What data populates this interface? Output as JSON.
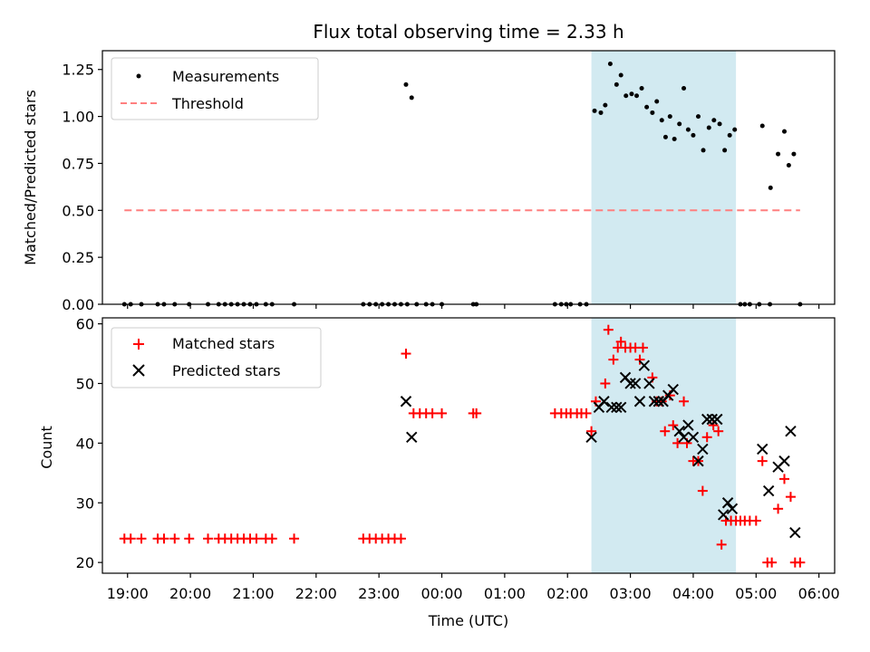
{
  "title": "Flux total observing time = 2.33 h",
  "colors": {
    "measurement": "#000000",
    "threshold": "#ff7f7f",
    "matched": "#ff0000",
    "predicted": "#000000",
    "span_fill": "#add8e6"
  },
  "chart_data": [
    {
      "type": "scatter",
      "ylabel": "Matched/Predicted stars",
      "xlabel": "",
      "xlim": [
        18.6,
        30.25
      ],
      "ylim": [
        0,
        1.35
      ],
      "yticks": [
        0.0,
        0.25,
        0.5,
        0.75,
        1.0,
        1.25
      ],
      "ytick_labels": [
        "0.00",
        "0.25",
        "0.50",
        "0.75",
        "1.00",
        "1.25"
      ],
      "highlight_span": [
        26.38,
        28.68
      ],
      "legend": {
        "placement": "upper-left",
        "entries": [
          {
            "label": "Measurements",
            "kind": "dot"
          },
          {
            "label": "Threshold",
            "kind": "dashed-line"
          }
        ]
      },
      "threshold": {
        "name": "Threshold",
        "y": 0.5,
        "x_range": [
          18.95,
          29.7
        ]
      },
      "series": [
        {
          "name": "Measurements",
          "points": [
            [
              18.95,
              0
            ],
            [
              19.05,
              0
            ],
            [
              19.22,
              0
            ],
            [
              19.48,
              0
            ],
            [
              19.58,
              0
            ],
            [
              19.75,
              0
            ],
            [
              19.98,
              0
            ],
            [
              20.28,
              0
            ],
            [
              20.45,
              0
            ],
            [
              20.55,
              0
            ],
            [
              20.65,
              0
            ],
            [
              20.75,
              0
            ],
            [
              20.85,
              0
            ],
            [
              20.95,
              0
            ],
            [
              21.05,
              0
            ],
            [
              21.2,
              0
            ],
            [
              21.3,
              0
            ],
            [
              21.65,
              0
            ],
            [
              22.75,
              0
            ],
            [
              22.85,
              0
            ],
            [
              22.95,
              0
            ],
            [
              23.05,
              0
            ],
            [
              23.15,
              0
            ],
            [
              23.25,
              0
            ],
            [
              23.35,
              0
            ],
            [
              23.45,
              0
            ],
            [
              23.6,
              0
            ],
            [
              23.75,
              0
            ],
            [
              23.85,
              0
            ],
            [
              24.0,
              0
            ],
            [
              24.5,
              0
            ],
            [
              24.55,
              0
            ],
            [
              25.8,
              0
            ],
            [
              25.9,
              0
            ],
            [
              25.98,
              0
            ],
            [
              26.05,
              0
            ],
            [
              26.2,
              0
            ],
            [
              26.3,
              0
            ],
            [
              23.43,
              1.17
            ],
            [
              23.52,
              1.1
            ],
            [
              26.43,
              1.03
            ],
            [
              26.53,
              1.02
            ],
            [
              26.6,
              1.06
            ],
            [
              26.68,
              1.28
            ],
            [
              26.78,
              1.17
            ],
            [
              26.85,
              1.22
            ],
            [
              26.93,
              1.11
            ],
            [
              27.02,
              1.12
            ],
            [
              27.1,
              1.11
            ],
            [
              27.18,
              1.15
            ],
            [
              27.26,
              1.05
            ],
            [
              27.35,
              1.02
            ],
            [
              27.42,
              1.08
            ],
            [
              27.5,
              0.98
            ],
            [
              27.56,
              0.89
            ],
            [
              27.63,
              1.0
            ],
            [
              27.7,
              0.88
            ],
            [
              27.78,
              0.96
            ],
            [
              27.85,
              1.15
            ],
            [
              27.92,
              0.93
            ],
            [
              28.0,
              0.9
            ],
            [
              28.08,
              1.0
            ],
            [
              28.16,
              0.82
            ],
            [
              28.25,
              0.94
            ],
            [
              28.33,
              0.98
            ],
            [
              28.42,
              0.96
            ],
            [
              28.5,
              0.82
            ],
            [
              28.58,
              0.9
            ],
            [
              28.66,
              0.93
            ],
            [
              28.75,
              0
            ],
            [
              28.82,
              0
            ],
            [
              28.9,
              0
            ],
            [
              29.05,
              0
            ],
            [
              29.22,
              0
            ],
            [
              29.7,
              0
            ],
            [
              29.1,
              0.95
            ],
            [
              29.23,
              0.62
            ],
            [
              29.35,
              0.8
            ],
            [
              29.45,
              0.92
            ],
            [
              29.52,
              0.74
            ],
            [
              29.6,
              0.8
            ]
          ]
        }
      ]
    },
    {
      "type": "scatter",
      "ylabel": "Count",
      "xlabel": "Time (UTC)",
      "xlim": [
        18.6,
        30.25
      ],
      "ylim": [
        18.2,
        61
      ],
      "yticks": [
        20,
        30,
        40,
        50,
        60
      ],
      "ytick_labels": [
        "20",
        "30",
        "40",
        "50",
        "60"
      ],
      "xticks": [
        19,
        20,
        21,
        22,
        23,
        24,
        25,
        26,
        27,
        28,
        29,
        30
      ],
      "xtick_labels": [
        "19:00",
        "20:00",
        "21:00",
        "22:00",
        "23:00",
        "00:00",
        "01:00",
        "02:00",
        "03:00",
        "04:00",
        "05:00",
        "06:00"
      ],
      "highlight_span": [
        26.38,
        28.68
      ],
      "legend": {
        "placement": "upper-left",
        "entries": [
          {
            "label": "Matched stars",
            "kind": "plus"
          },
          {
            "label": "Predicted stars",
            "kind": "cross"
          }
        ]
      },
      "series": [
        {
          "name": "Matched stars",
          "points": [
            [
              18.95,
              24
            ],
            [
              19.05,
              24
            ],
            [
              19.22,
              24
            ],
            [
              19.48,
              24
            ],
            [
              19.58,
              24
            ],
            [
              19.75,
              24
            ],
            [
              19.98,
              24
            ],
            [
              20.28,
              24
            ],
            [
              20.45,
              24
            ],
            [
              20.55,
              24
            ],
            [
              20.65,
              24
            ],
            [
              20.75,
              24
            ],
            [
              20.85,
              24
            ],
            [
              20.95,
              24
            ],
            [
              21.05,
              24
            ],
            [
              21.2,
              24
            ],
            [
              21.3,
              24
            ],
            [
              21.65,
              24
            ],
            [
              22.75,
              24
            ],
            [
              22.85,
              24
            ],
            [
              22.95,
              24
            ],
            [
              23.05,
              24
            ],
            [
              23.15,
              24
            ],
            [
              23.25,
              24
            ],
            [
              23.35,
              24
            ],
            [
              23.43,
              55
            ],
            [
              23.55,
              45
            ],
            [
              23.65,
              45
            ],
            [
              23.75,
              45
            ],
            [
              23.85,
              45
            ],
            [
              24.0,
              45
            ],
            [
              24.5,
              45
            ],
            [
              24.55,
              45
            ],
            [
              25.8,
              45
            ],
            [
              25.9,
              45
            ],
            [
              25.98,
              45
            ],
            [
              26.05,
              45
            ],
            [
              26.15,
              45
            ],
            [
              26.22,
              45
            ],
            [
              26.3,
              45
            ],
            [
              26.38,
              42
            ],
            [
              26.45,
              47
            ],
            [
              26.6,
              50
            ],
            [
              26.65,
              59
            ],
            [
              26.73,
              54
            ],
            [
              26.8,
              56
            ],
            [
              26.85,
              57
            ],
            [
              26.92,
              56
            ],
            [
              27.0,
              56
            ],
            [
              27.08,
              56
            ],
            [
              27.2,
              56
            ],
            [
              27.15,
              54
            ],
            [
              27.35,
              51
            ],
            [
              27.42,
              47
            ],
            [
              27.5,
              47
            ],
            [
              27.55,
              42
            ],
            [
              27.63,
              48
            ],
            [
              27.68,
              43
            ],
            [
              27.75,
              40
            ],
            [
              27.85,
              47
            ],
            [
              27.9,
              40
            ],
            [
              28.0,
              37
            ],
            [
              28.08,
              37
            ],
            [
              28.15,
              32
            ],
            [
              28.22,
              41
            ],
            [
              28.32,
              43
            ],
            [
              28.4,
              42
            ],
            [
              28.45,
              23
            ],
            [
              28.52,
              27
            ],
            [
              28.6,
              27
            ],
            [
              28.68,
              27
            ],
            [
              28.75,
              27
            ],
            [
              28.82,
              27
            ],
            [
              28.9,
              27
            ],
            [
              29.0,
              27
            ],
            [
              29.1,
              37
            ],
            [
              29.18,
              20
            ],
            [
              29.25,
              20
            ],
            [
              29.35,
              29
            ],
            [
              29.45,
              34
            ],
            [
              29.55,
              31
            ],
            [
              29.62,
              20
            ],
            [
              29.7,
              20
            ]
          ]
        },
        {
          "name": "Predicted stars",
          "points": [
            [
              23.43,
              47
            ],
            [
              23.52,
              41
            ],
            [
              26.38,
              41
            ],
            [
              26.5,
              46
            ],
            [
              26.58,
              47
            ],
            [
              26.7,
              46
            ],
            [
              26.78,
              46
            ],
            [
              26.85,
              46
            ],
            [
              26.92,
              51
            ],
            [
              27.0,
              50
            ],
            [
              27.08,
              50
            ],
            [
              27.15,
              47
            ],
            [
              27.22,
              53
            ],
            [
              27.3,
              50
            ],
            [
              27.38,
              47
            ],
            [
              27.45,
              47
            ],
            [
              27.52,
              47
            ],
            [
              27.6,
              48
            ],
            [
              27.68,
              49
            ],
            [
              27.78,
              42
            ],
            [
              27.85,
              41
            ],
            [
              27.92,
              43
            ],
            [
              28.0,
              41
            ],
            [
              28.08,
              37
            ],
            [
              28.15,
              39
            ],
            [
              28.22,
              44
            ],
            [
              28.3,
              44
            ],
            [
              28.38,
              44
            ],
            [
              28.48,
              28
            ],
            [
              28.55,
              30
            ],
            [
              28.62,
              29
            ],
            [
              29.1,
              39
            ],
            [
              29.2,
              32
            ],
            [
              29.35,
              36
            ],
            [
              29.45,
              37
            ],
            [
              29.55,
              42
            ],
            [
              29.62,
              25
            ]
          ]
        }
      ]
    }
  ]
}
